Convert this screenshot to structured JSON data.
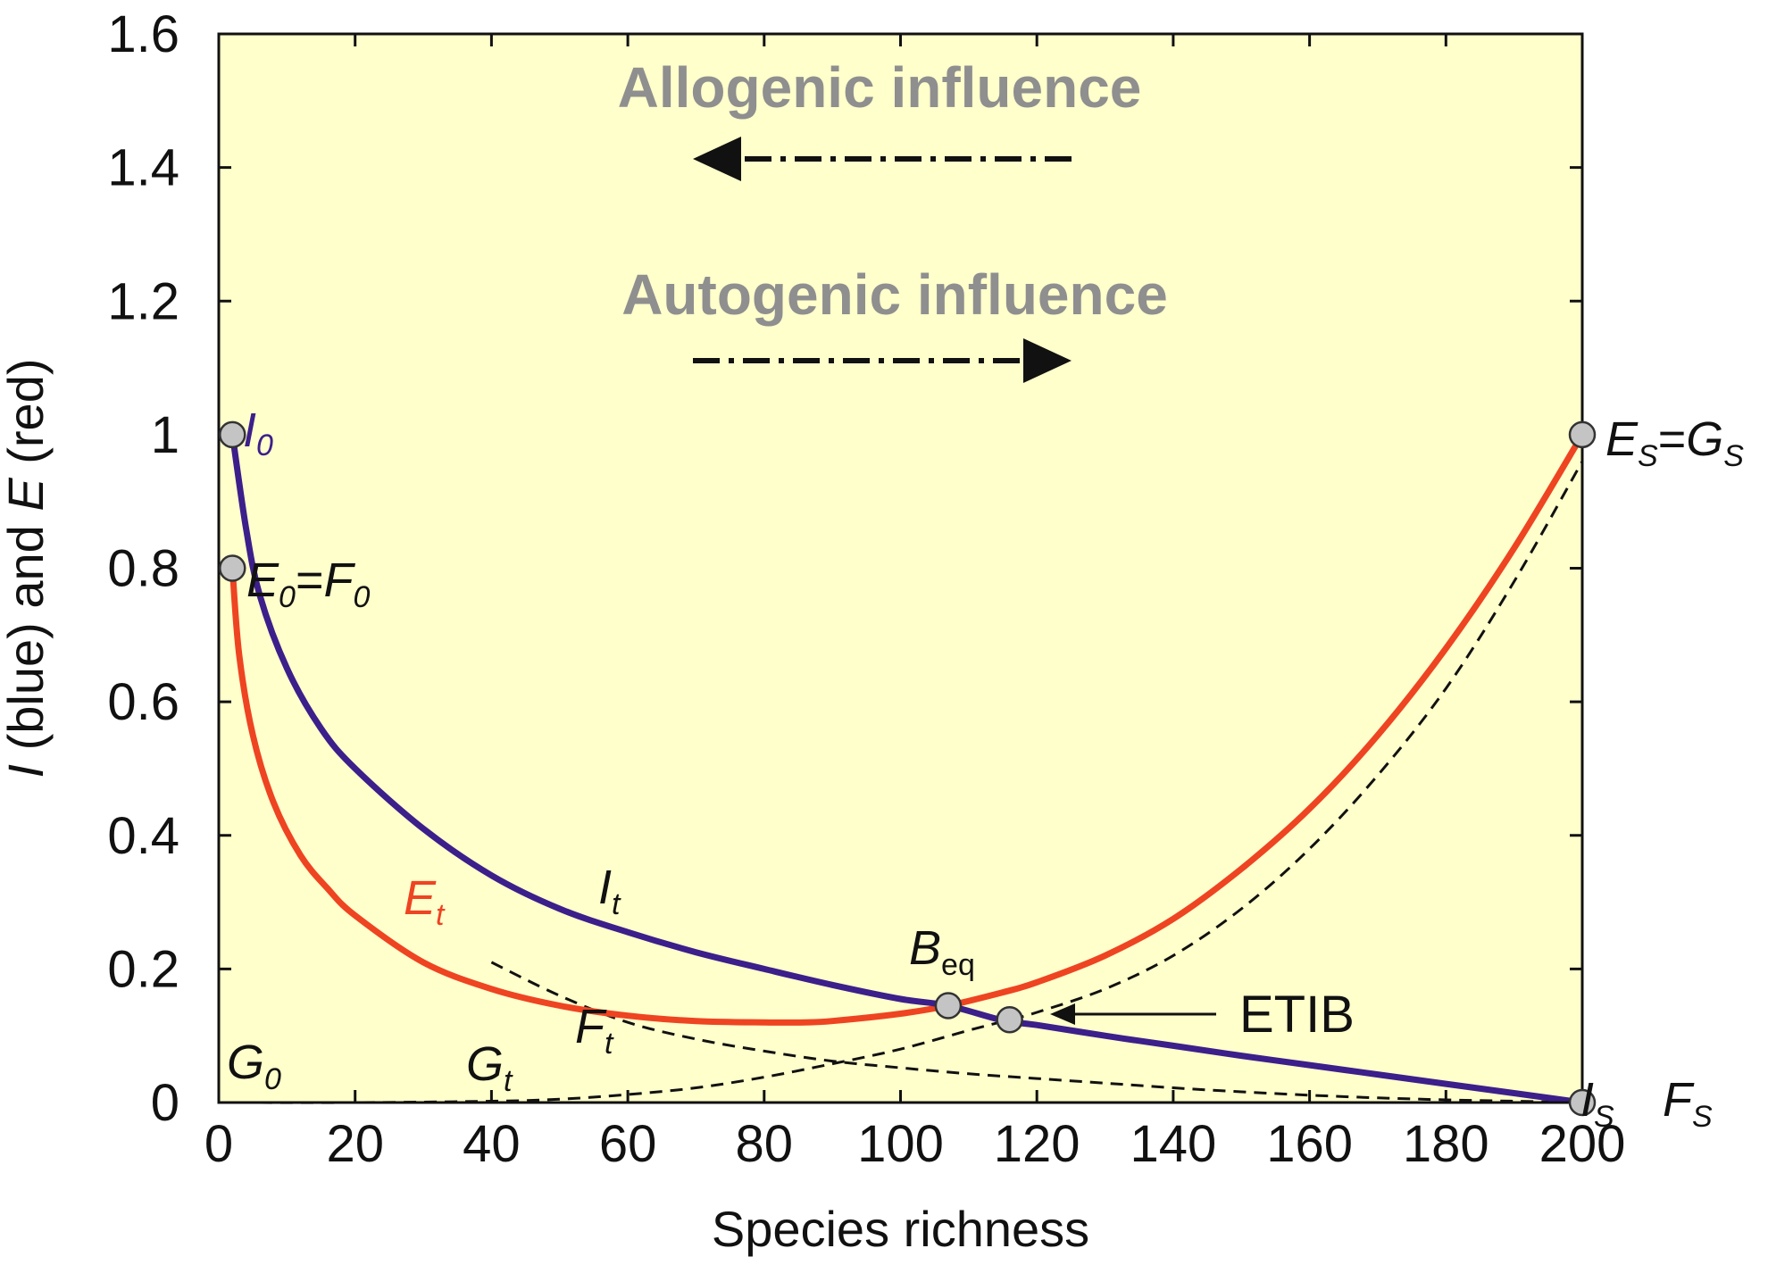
{
  "chart_data": {
    "type": "line",
    "xlabel": "Species richness",
    "ylabel": {
      "pre": "I",
      "mid1": " (blue) and ",
      "e": "E",
      "post": " (red)"
    },
    "xlim": [
      0,
      200
    ],
    "ylim": [
      0,
      1.6
    ],
    "x_ticks": [
      "0",
      "20",
      "40",
      "60",
      "80",
      "100",
      "120",
      "140",
      "160",
      "180",
      "200"
    ],
    "y_ticks": [
      "0",
      "0.2",
      "0.4",
      "0.6",
      "0.8",
      "1",
      "1.2",
      "1.4",
      "1.6"
    ],
    "grid": false,
    "plot_background": "#ffffcc",
    "colors": {
      "immigration": "#3c1f8a",
      "extinction": "#ee4422",
      "dashed": "#111111",
      "marker_fill": "#c4c4c4",
      "influence_text": "#8f8f8f",
      "arrow": "#111111"
    },
    "series": [
      {
        "name": "I",
        "style": "solid",
        "x": [
          2,
          4,
          6,
          10,
          15,
          20,
          30,
          40,
          50,
          60,
          70,
          80,
          90,
          100,
          107,
          115,
          120,
          130,
          140,
          150,
          160,
          170,
          180,
          190,
          200
        ],
        "y": [
          1.0,
          0.86,
          0.76,
          0.65,
          0.56,
          0.5,
          0.41,
          0.34,
          0.29,
          0.255,
          0.225,
          0.2,
          0.176,
          0.155,
          0.145,
          0.123,
          0.116,
          0.1,
          0.085,
          0.07,
          0.056,
          0.042,
          0.028,
          0.014,
          0.0
        ]
      },
      {
        "name": "E",
        "style": "solid",
        "x": [
          2,
          3,
          5,
          8,
          12,
          16,
          20,
          30,
          40,
          50,
          60,
          70,
          80,
          86,
          90,
          100,
          107,
          115,
          120,
          130,
          140,
          150,
          160,
          170,
          180,
          190,
          200
        ],
        "y": [
          0.8,
          0.67,
          0.55,
          0.45,
          0.37,
          0.32,
          0.28,
          0.21,
          0.17,
          0.145,
          0.13,
          0.122,
          0.12,
          0.12,
          0.122,
          0.133,
          0.145,
          0.165,
          0.18,
          0.22,
          0.275,
          0.35,
          0.44,
          0.55,
          0.68,
          0.83,
          1.0
        ]
      },
      {
        "name": "F",
        "style": "dashed",
        "x": [
          40,
          50,
          60,
          70,
          80,
          90,
          100,
          110,
          120,
          130,
          140,
          150,
          160,
          170,
          180,
          190,
          200
        ],
        "y": [
          0.21,
          0.16,
          0.12,
          0.095,
          0.077,
          0.062,
          0.052,
          0.043,
          0.036,
          0.029,
          0.022,
          0.016,
          0.011,
          0.007,
          0.004,
          0.002,
          0.0
        ]
      },
      {
        "name": "G",
        "style": "dashed",
        "x": [
          0,
          20,
          40,
          50,
          60,
          70,
          80,
          90,
          100,
          110,
          116,
          120,
          130,
          140,
          150,
          160,
          170,
          180,
          190,
          200
        ],
        "y": [
          0.0,
          0.0,
          0.002,
          0.005,
          0.012,
          0.022,
          0.038,
          0.058,
          0.08,
          0.108,
          0.124,
          0.135,
          0.17,
          0.22,
          0.29,
          0.38,
          0.49,
          0.62,
          0.78,
          0.96
        ]
      }
    ],
    "points": [
      {
        "name": "I0",
        "x": 2,
        "y": 1.0
      },
      {
        "name": "E0",
        "x": 2,
        "y": 0.8
      },
      {
        "name": "Es",
        "x": 200,
        "y": 1.0
      },
      {
        "name": "Is",
        "x": 200,
        "y": 0.0
      },
      {
        "name": "Beq",
        "x": 107,
        "y": 0.145
      },
      {
        "name": "ETIB",
        "x": 116,
        "y": 0.124
      }
    ],
    "annotations": {
      "I0": {
        "main": "I",
        "sub": "0"
      },
      "E0_F0": {
        "m1": "E",
        "s1": "0",
        "eq": "=",
        "m2": "F",
        "s2": "0"
      },
      "Es_Gs": {
        "m1": "E",
        "s1": "S",
        "eq": "=",
        "m2": "G",
        "s2": "S"
      },
      "Is": {
        "main": "I",
        "sub": "S"
      },
      "Fs": {
        "main": "F",
        "sub": "S"
      },
      "It": {
        "main": "I",
        "sub": "t"
      },
      "Et": {
        "main": "E",
        "sub": "t"
      },
      "Ft": {
        "main": "F",
        "sub": "t"
      },
      "Gt": {
        "main": "G",
        "sub": "t"
      },
      "G0": {
        "main": "G",
        "sub": "0"
      },
      "Beq": {
        "main": "B",
        "sub": "eq"
      },
      "etib": "ETIB",
      "allogenic": "Allogenic influence",
      "autogenic": "Autogenic influence"
    }
  }
}
